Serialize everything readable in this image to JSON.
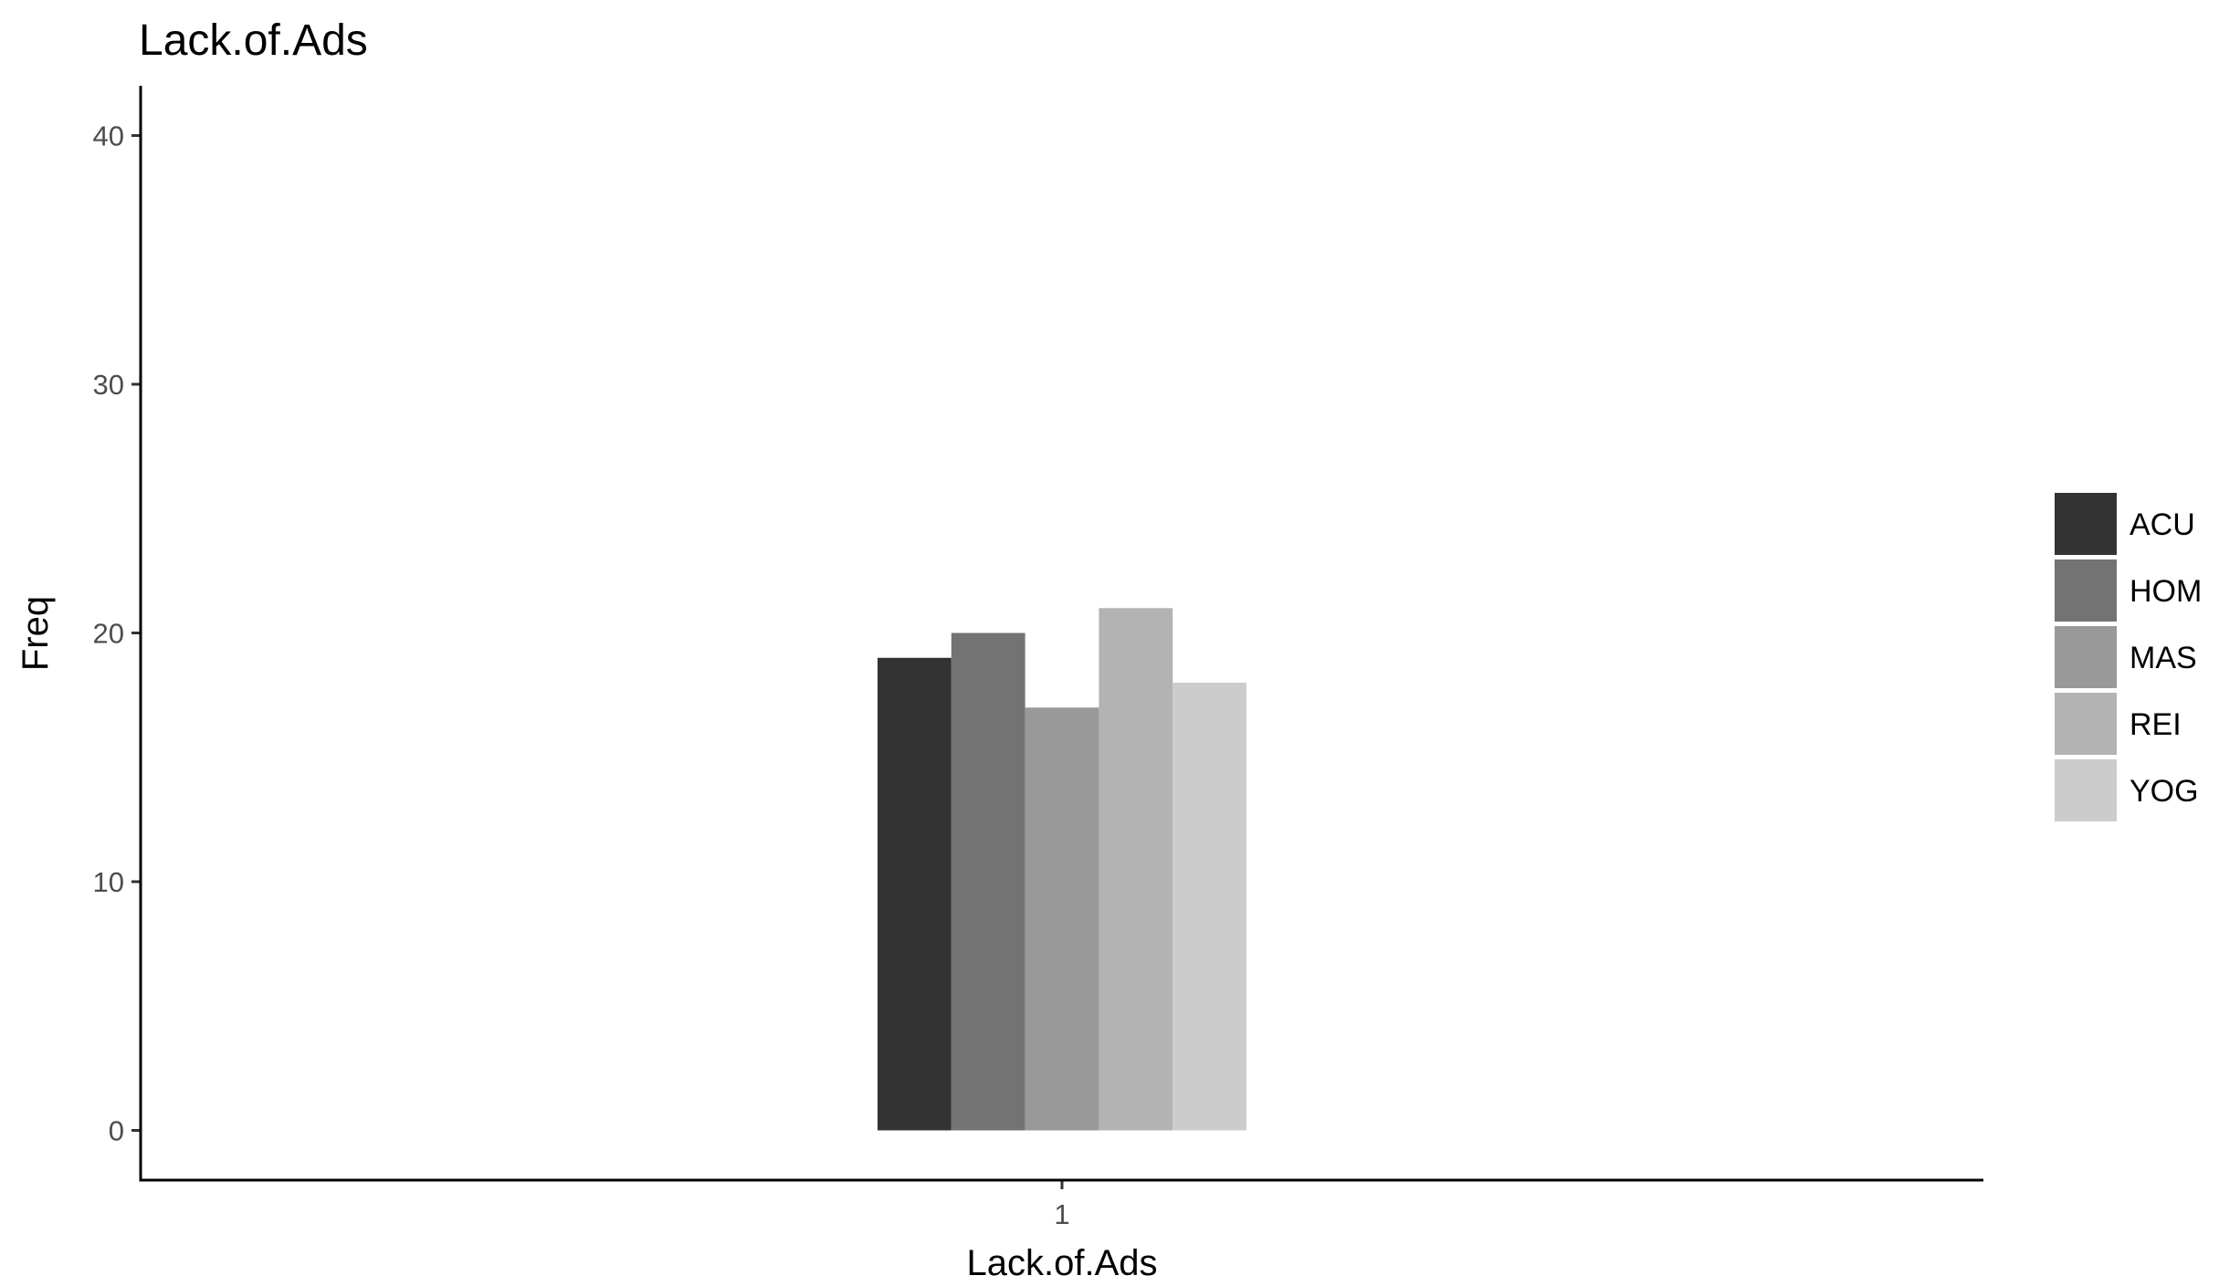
{
  "chart_data": {
    "type": "bar",
    "title": "Lack.of.Ads",
    "xlabel": "Lack.of.Ads",
    "ylabel": "Freq",
    "categories": [
      "1"
    ],
    "series": [
      {
        "name": "ACU",
        "values": [
          19
        ],
        "color": "#333333"
      },
      {
        "name": "HOM",
        "values": [
          20
        ],
        "color": "#737373"
      },
      {
        "name": "MAS",
        "values": [
          17
        ],
        "color": "#999999"
      },
      {
        "name": "REI",
        "values": [
          21
        ],
        "color": "#b3b3b3"
      },
      {
        "name": "YOG",
        "values": [
          18
        ],
        "color": "#cccccc"
      }
    ],
    "y_ticks": [
      0,
      10,
      20,
      30,
      40
    ],
    "ylim": [
      -2,
      42
    ],
    "grid": false,
    "legend_position": "right"
  }
}
